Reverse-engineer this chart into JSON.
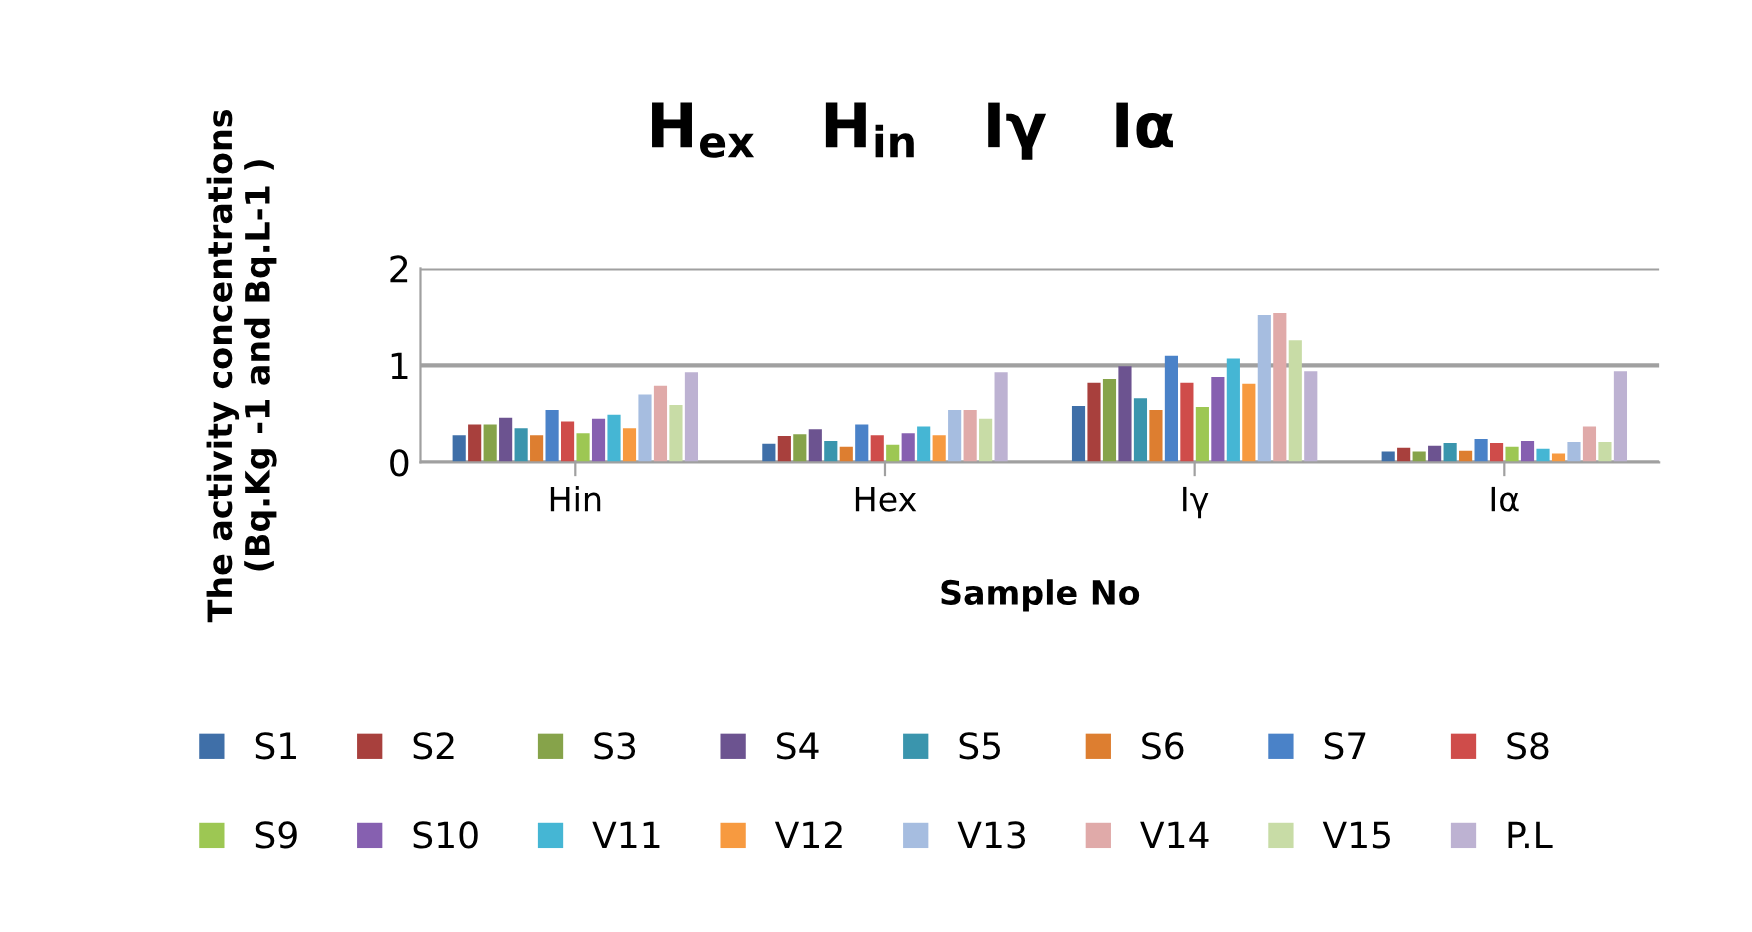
{
  "chart_data": {
    "type": "bar",
    "title": "H$_{ex}$   H$_{in}$   Iγ   Iα",
    "xlabel": "Sample No",
    "ylabel": "The activity concentrations\n(Bq.Kg -1 and Bq.L-1 )",
    "categories": [
      "Hin",
      "Hex",
      "Iγ",
      "Iα"
    ],
    "series": [
      {
        "name": "S1",
        "color": "#3f6fa8",
        "values": [
          0.28,
          0.19,
          0.58,
          0.11
        ]
      },
      {
        "name": "S2",
        "color": "#a8403d",
        "values": [
          0.39,
          0.27,
          0.82,
          0.15
        ]
      },
      {
        "name": "S3",
        "color": "#86a34a",
        "values": [
          0.39,
          0.29,
          0.86,
          0.11
        ]
      },
      {
        "name": "S4",
        "color": "#6c5390",
        "values": [
          0.46,
          0.34,
          0.99,
          0.17
        ]
      },
      {
        "name": "S5",
        "color": "#3a95ad",
        "values": [
          0.35,
          0.22,
          0.66,
          0.2
        ]
      },
      {
        "name": "S6",
        "color": "#dd7e30",
        "values": [
          0.28,
          0.16,
          0.54,
          0.12
        ]
      },
      {
        "name": "S7",
        "color": "#4a82c8",
        "values": [
          0.54,
          0.39,
          1.1,
          0.24
        ]
      },
      {
        "name": "S8",
        "color": "#cf4c4a",
        "values": [
          0.42,
          0.28,
          0.82,
          0.2
        ]
      },
      {
        "name": "S9",
        "color": "#9dc753",
        "values": [
          0.3,
          0.18,
          0.57,
          0.16
        ]
      },
      {
        "name": "S10",
        "color": "#8660b0",
        "values": [
          0.45,
          0.3,
          0.88,
          0.22
        ]
      },
      {
        "name": "V11",
        "color": "#45b6d4",
        "values": [
          0.49,
          0.37,
          1.07,
          0.14
        ]
      },
      {
        "name": "V12",
        "color": "#f79a40",
        "values": [
          0.35,
          0.28,
          0.81,
          0.09
        ]
      },
      {
        "name": "V13",
        "color": "#a6bde0",
        "values": [
          0.7,
          0.54,
          1.52,
          0.21
        ]
      },
      {
        "name": "V14",
        "color": "#e0aaa9",
        "values": [
          0.79,
          0.54,
          1.54,
          0.37
        ]
      },
      {
        "name": "V15",
        "color": "#c8dca6",
        "values": [
          0.59,
          0.45,
          1.26,
          0.21
        ]
      },
      {
        "name": "P.L",
        "color": "#bdb2d2",
        "values": [
          0.93,
          0.93,
          0.94,
          0.94
        ]
      }
    ],
    "ylim": [
      0,
      2
    ],
    "yticks": [
      0,
      1,
      2
    ],
    "grid": "y",
    "legend": "bottom"
  }
}
